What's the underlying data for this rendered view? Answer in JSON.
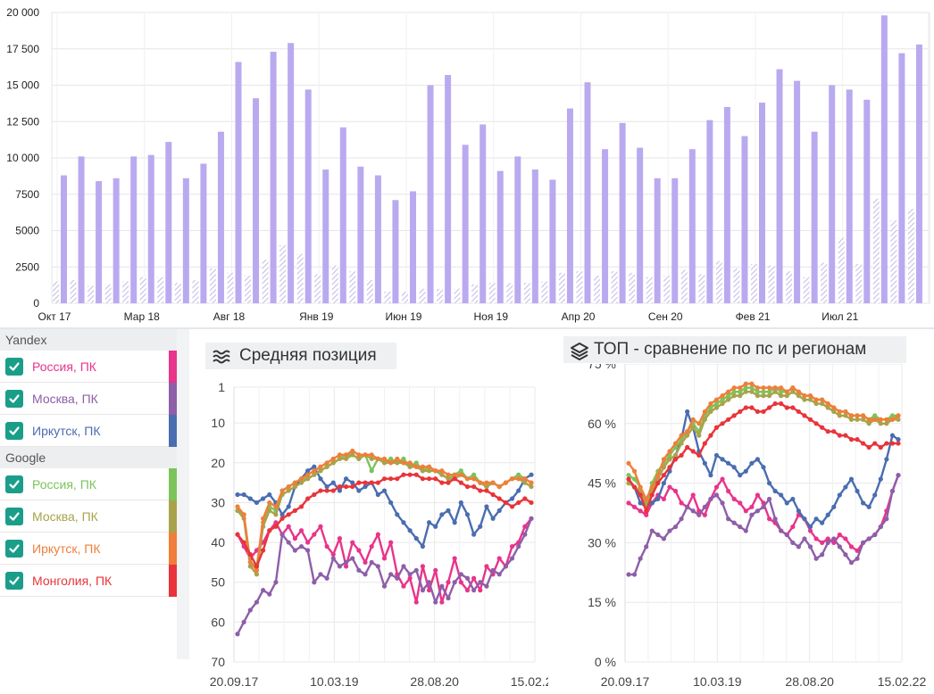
{
  "bar_chart": {
    "chart_data": {
      "type": "bar",
      "y_ticks": [
        "0",
        "2500",
        "5000",
        "7500",
        "10 000",
        "12 500",
        "15 000",
        "17 500",
        "20 000"
      ],
      "ylim": [
        0,
        20000
      ],
      "x_labels": [
        "Окт 17",
        "Мар 18",
        "Авг 18",
        "Янв 19",
        "Июн 19",
        "Ноя 19",
        "Апр 20",
        "Сен 20",
        "Фев 21",
        "Июл 21"
      ],
      "series": [
        {
          "values": [
            8800,
            10100,
            8400,
            8600,
            10100,
            10200,
            11100,
            8600,
            9600,
            11800,
            16600,
            14100,
            17300,
            17900,
            14700,
            9200,
            12100,
            9400,
            8800,
            7100,
            7700,
            15000,
            15700,
            10900,
            12300,
            9100,
            10100,
            9200,
            8500,
            13400,
            15200,
            10600,
            12400,
            10700,
            8600,
            8600,
            10600,
            12600,
            13500,
            11500,
            13800,
            16100,
            15300,
            11800,
            15000,
            14700,
            14000,
            19800,
            17200,
            17800
          ]
        },
        {
          "values": [
            1500,
            1600,
            1200,
            1300,
            1500,
            1800,
            1800,
            1400,
            1600,
            2400,
            2100,
            1900,
            3000,
            4000,
            3400,
            2000,
            2600,
            2200,
            1600,
            800,
            800,
            1000,
            1000,
            1000,
            1300,
            1400,
            1400,
            1400,
            1500,
            2100,
            2200,
            1900,
            2200,
            2100,
            1800,
            1900,
            2300,
            2000,
            2900,
            2400,
            2700,
            2600,
            2200,
            1800,
            2800,
            4500,
            2700,
            7200,
            5700,
            6500
          ]
        }
      ],
      "colors": {
        "main": "#b9aaf0",
        "secondary": "#c6bfe6"
      }
    }
  },
  "legend": {
    "groups": [
      {
        "name": "Yandex",
        "items": [
          {
            "label": "Россия, ПК",
            "color": "#e8348a"
          },
          {
            "label": "Москва, ПК",
            "color": "#8e5ea8"
          },
          {
            "label": "Иркутск, ПК",
            "color": "#4a6db0"
          }
        ]
      },
      {
        "name": "Google",
        "items": [
          {
            "label": "Россия, ПК",
            "color": "#7cc35b"
          },
          {
            "label": "Москва, ПК",
            "color": "#a8a34a"
          },
          {
            "label": "Иркутск, ПК",
            "color": "#f07e3a"
          },
          {
            "label": "Монголия, ПК",
            "color": "#e8343a"
          }
        ]
      }
    ]
  },
  "avg_position": {
    "title": "Средняя позиция",
    "icon": "wavy-lines-icon",
    "chart_data": {
      "type": "line",
      "y_ticks": [
        "1",
        "10",
        "20",
        "30",
        "40",
        "50",
        "60",
        "70"
      ],
      "x_ticks": [
        "20.09.17",
        "10.03.19",
        "28.08.20",
        "15.02.22"
      ],
      "y_reversed": true,
      "ylim": [
        1,
        70
      ],
      "series": [
        {
          "color": "#e8348a",
          "values": [
            38,
            41,
            44,
            42,
            40,
            37,
            35,
            38,
            36,
            39,
            37,
            40,
            38,
            36,
            41,
            43,
            39,
            46,
            40,
            42,
            45,
            41,
            38,
            44,
            40,
            48,
            51,
            49,
            55,
            46,
            52,
            47,
            55,
            50,
            44,
            50,
            52,
            49,
            52,
            46,
            48,
            44,
            46,
            41,
            40,
            36,
            34
          ]
        },
        {
          "color": "#8e5ea8",
          "values": [
            63,
            60,
            57,
            55,
            52,
            53,
            50,
            38,
            40,
            42,
            41,
            42,
            50,
            48,
            49,
            44,
            46,
            45,
            44,
            47,
            48,
            45,
            46,
            51,
            48,
            49,
            46,
            48,
            47,
            52,
            50,
            55,
            51,
            54,
            50,
            48,
            49,
            52,
            50,
            51,
            47,
            48,
            46,
            44,
            41,
            38,
            34
          ]
        },
        {
          "color": "#4a6db0",
          "values": [
            28,
            28,
            29,
            30,
            29,
            28,
            30,
            33,
            31,
            26,
            24,
            22,
            21,
            24,
            26,
            25,
            27,
            24,
            25,
            27,
            26,
            25,
            28,
            27,
            30,
            33,
            35,
            37,
            39,
            41,
            35,
            36,
            33,
            32,
            35,
            30,
            33,
            38,
            36,
            31,
            34,
            32,
            30,
            29,
            27,
            24,
            23
          ]
        },
        {
          "color": "#7cc35b",
          "values": [
            32,
            33,
            45,
            46,
            35,
            31,
            32,
            27,
            26,
            25,
            24,
            24,
            23,
            22,
            21,
            20,
            19,
            18,
            18,
            19,
            18,
            22,
            19,
            20,
            19,
            20,
            19,
            21,
            20,
            22,
            21,
            22,
            23,
            24,
            23,
            22,
            24,
            23,
            25,
            26,
            25,
            26,
            25,
            24,
            23,
            24,
            25
          ]
        },
        {
          "color": "#a8a34a",
          "values": [
            32,
            34,
            46,
            48,
            36,
            32,
            33,
            28,
            27,
            26,
            25,
            24,
            23,
            22,
            21,
            20,
            19,
            19,
            18,
            19,
            18,
            19,
            19,
            20,
            20,
            20,
            20,
            21,
            21,
            22,
            22,
            22,
            23,
            24,
            24,
            23,
            24,
            24,
            25,
            26,
            25,
            26,
            25,
            24,
            24,
            25,
            26
          ]
        },
        {
          "color": "#f07e3a",
          "values": [
            31,
            33,
            45,
            47,
            34,
            30,
            31,
            27,
            26,
            25,
            24,
            23,
            22,
            21,
            20,
            19,
            18,
            18,
            17,
            18,
            18,
            18,
            19,
            19,
            20,
            19,
            20,
            20,
            21,
            21,
            21,
            22,
            22,
            23,
            23,
            23,
            24,
            24,
            25,
            25,
            25,
            26,
            25,
            24,
            24,
            24,
            25
          ]
        },
        {
          "color": "#e8343a",
          "values": [
            38,
            40,
            43,
            46,
            42,
            37,
            36,
            34,
            33,
            32,
            31,
            29,
            28,
            27,
            27,
            27,
            26,
            26,
            26,
            25,
            25,
            25,
            25,
            24,
            24,
            24,
            23,
            23,
            23,
            24,
            24,
            24,
            25,
            25,
            24,
            25,
            26,
            26,
            27,
            27,
            28,
            29,
            30,
            31,
            30,
            29,
            30
          ]
        }
      ]
    }
  },
  "top_compare": {
    "title": "ТОП - сравнение по пс и регионам",
    "icon": "layers-icon",
    "chart_data": {
      "type": "line",
      "y_ticks": [
        "0 %",
        "15 %",
        "30 %",
        "45 %",
        "60 %",
        "75 %"
      ],
      "x_ticks": [
        "20.09.17",
        "10.03.19",
        "28.08.20",
        "15.02.22"
      ],
      "ylim": [
        0,
        75
      ],
      "series": [
        {
          "color": "#e8348a",
          "values": [
            40,
            39,
            38,
            37,
            40,
            42,
            41,
            44,
            43,
            40,
            39,
            42,
            38,
            37,
            41,
            44,
            46,
            43,
            41,
            40,
            38,
            39,
            42,
            40,
            36,
            35,
            33,
            32,
            34,
            37,
            36,
            33,
            31,
            30,
            31,
            30,
            32,
            31,
            29,
            28,
            30,
            31,
            32,
            34,
            38,
            43,
            47
          ]
        },
        {
          "color": "#8e5ea8",
          "values": [
            22,
            22,
            26,
            29,
            33,
            32,
            31,
            33,
            34,
            36,
            39,
            38,
            37,
            39,
            41,
            42,
            40,
            36,
            35,
            34,
            33,
            37,
            38,
            39,
            41,
            36,
            33,
            32,
            30,
            29,
            31,
            29,
            26,
            27,
            30,
            31,
            29,
            27,
            25,
            26,
            30,
            31,
            32,
            34,
            36,
            43,
            47
          ]
        },
        {
          "color": "#4a6db0",
          "values": [
            46,
            44,
            40,
            39,
            40,
            41,
            45,
            48,
            52,
            56,
            63,
            59,
            53,
            50,
            47,
            52,
            51,
            50,
            49,
            47,
            48,
            50,
            51,
            49,
            45,
            43,
            42,
            40,
            41,
            38,
            36,
            34,
            36,
            35,
            37,
            39,
            42,
            44,
            46,
            43,
            40,
            39,
            42,
            46,
            51,
            57,
            56
          ]
        },
        {
          "color": "#7cc35b",
          "values": [
            47,
            46,
            44,
            40,
            45,
            48,
            50,
            52,
            54,
            56,
            58,
            60,
            58,
            62,
            64,
            65,
            66,
            67,
            68,
            68,
            69,
            69,
            68,
            68,
            68,
            69,
            68,
            68,
            69,
            68,
            67,
            67,
            66,
            66,
            65,
            64,
            63,
            63,
            62,
            62,
            62,
            61,
            62,
            61,
            61,
            62,
            62
          ]
        },
        {
          "color": "#a8a34a",
          "values": [
            45,
            44,
            43,
            39,
            43,
            46,
            49,
            51,
            52,
            55,
            57,
            59,
            57,
            61,
            63,
            64,
            65,
            66,
            67,
            67,
            68,
            68,
            67,
            67,
            67,
            68,
            67,
            67,
            68,
            67,
            66,
            66,
            65,
            65,
            64,
            63,
            62,
            62,
            61,
            61,
            61,
            60,
            61,
            60,
            60,
            61,
            61
          ]
        },
        {
          "color": "#f07e3a",
          "values": [
            50,
            48,
            44,
            41,
            44,
            47,
            51,
            53,
            55,
            57,
            58,
            61,
            60,
            63,
            65,
            66,
            67,
            68,
            69,
            69,
            70,
            70,
            69,
            69,
            69,
            69,
            69,
            68,
            69,
            68,
            67,
            67,
            66,
            66,
            65,
            64,
            63,
            63,
            62,
            62,
            62,
            61,
            61,
            61,
            61,
            61,
            62
          ]
        },
        {
          "color": "#e8343a",
          "values": [
            46,
            44,
            42,
            38,
            42,
            45,
            47,
            49,
            51,
            52,
            54,
            53,
            52,
            55,
            57,
            59,
            60,
            61,
            62,
            63,
            64,
            64,
            63,
            63,
            64,
            65,
            65,
            64,
            64,
            63,
            62,
            61,
            60,
            59,
            58,
            58,
            57,
            57,
            56,
            56,
            55,
            54,
            55,
            54,
            55,
            55,
            55
          ]
        }
      ]
    }
  }
}
